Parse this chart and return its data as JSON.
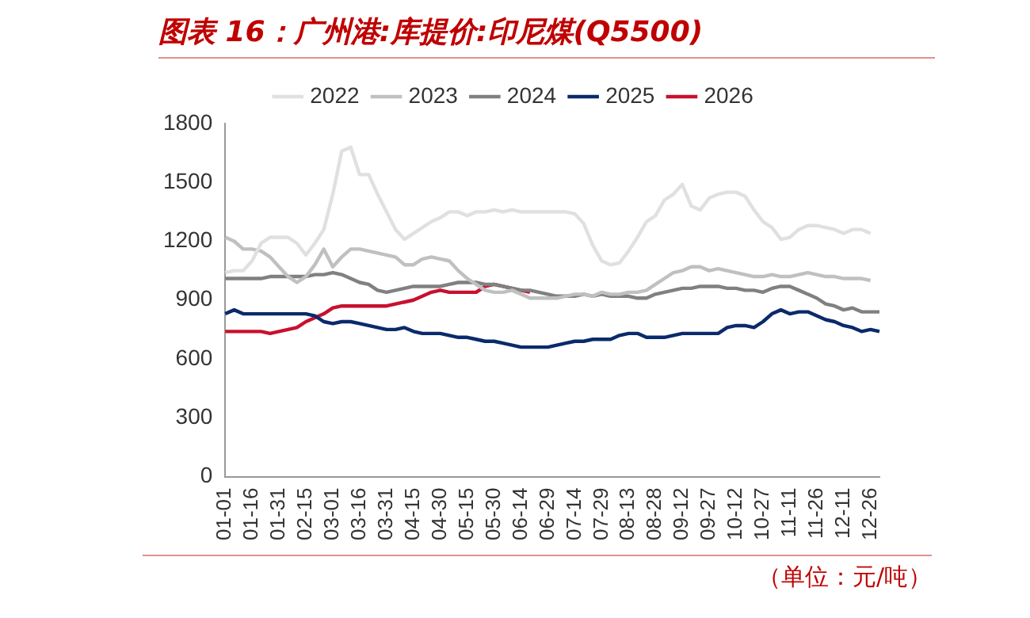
{
  "chart_data": {
    "type": "line",
    "title": "图表 16：广州港:库提价:印尼煤(Q5500)",
    "categories": [
      "01-01",
      null,
      null,
      "01-16",
      null,
      null,
      "01-31",
      null,
      null,
      "02-15",
      null,
      null,
      "03-01",
      null,
      null,
      "03-16",
      null,
      null,
      "03-31",
      null,
      null,
      "04-15",
      null,
      null,
      "04-30",
      null,
      null,
      "05-15",
      null,
      null,
      "05-30",
      null,
      null,
      "06-14",
      null,
      null,
      "06-29",
      null,
      null,
      "07-14",
      null,
      null,
      "07-29",
      null,
      null,
      "08-13",
      null,
      null,
      "08-28",
      null,
      null,
      "09-12",
      null,
      null,
      "09-27",
      null,
      null,
      "10-12",
      null,
      null,
      "10-27",
      null,
      null,
      "11-11",
      null,
      null,
      "11-26",
      null,
      null,
      "12-11",
      null,
      null,
      "12-26",
      null
    ],
    "series": [
      {
        "name": "2022",
        "color": "#e0e0e0",
        "values": [
          1040,
          1050,
          1050,
          1100,
          1190,
          1220,
          1220,
          1220,
          1190,
          1130,
          1190,
          1260,
          1440,
          1660,
          1680,
          1540,
          1540,
          1440,
          1350,
          1260,
          1210,
          1240,
          1270,
          1300,
          1320,
          1350,
          1350,
          1330,
          1350,
          1350,
          1360,
          1350,
          1360,
          1350,
          1350,
          1350,
          1350,
          1350,
          1350,
          1340,
          1290,
          1180,
          1100,
          1080,
          1090,
          1150,
          1220,
          1300,
          1330,
          1410,
          1440,
          1490,
          1380,
          1360,
          1420,
          1440,
          1450,
          1450,
          1430,
          1360,
          1300,
          1270,
          1210,
          1220,
          1260,
          1280,
          1280,
          1270,
          1260,
          1240,
          1260,
          1260,
          1240,
          null
        ]
      },
      {
        "name": "2023",
        "color": "#c0c0c0",
        "values": [
          1220,
          1200,
          1160,
          1160,
          1150,
          1120,
          1070,
          1020,
          990,
          1020,
          1080,
          1160,
          1070,
          1120,
          1160,
          1160,
          1150,
          1140,
          1130,
          1120,
          1080,
          1080,
          1110,
          1120,
          1110,
          1100,
          1050,
          1010,
          980,
          950,
          940,
          940,
          950,
          930,
          910,
          910,
          910,
          910,
          920,
          930,
          930,
          920,
          940,
          930,
          930,
          940,
          940,
          950,
          980,
          1010,
          1040,
          1050,
          1070,
          1070,
          1050,
          1060,
          1050,
          1040,
          1030,
          1020,
          1020,
          1030,
          1020,
          1020,
          1030,
          1040,
          1030,
          1020,
          1020,
          1010,
          1010,
          1010,
          1000,
          null
        ]
      },
      {
        "name": "2024",
        "color": "#808080",
        "values": [
          1010,
          1010,
          1010,
          1010,
          1010,
          1020,
          1020,
          1020,
          1020,
          1020,
          1030,
          1030,
          1040,
          1030,
          1010,
          990,
          980,
          950,
          940,
          950,
          960,
          970,
          970,
          970,
          970,
          980,
          990,
          990,
          990,
          980,
          980,
          970,
          960,
          950,
          950,
          940,
          930,
          920,
          920,
          920,
          930,
          920,
          930,
          920,
          920,
          920,
          910,
          910,
          930,
          940,
          950,
          960,
          960,
          970,
          970,
          970,
          960,
          960,
          950,
          950,
          940,
          960,
          970,
          970,
          950,
          930,
          910,
          880,
          870,
          850,
          860,
          840,
          840,
          840
        ]
      },
      {
        "name": "2025",
        "color": "#0a2a6b",
        "values": [
          830,
          850,
          830,
          830,
          830,
          830,
          830,
          830,
          830,
          830,
          820,
          790,
          780,
          790,
          790,
          780,
          770,
          760,
          750,
          750,
          760,
          740,
          730,
          730,
          730,
          720,
          710,
          710,
          700,
          690,
          690,
          680,
          670,
          660,
          660,
          660,
          660,
          670,
          680,
          690,
          690,
          700,
          700,
          700,
          720,
          730,
          730,
          710,
          710,
          710,
          720,
          730,
          730,
          730,
          730,
          730,
          760,
          770,
          770,
          760,
          790,
          830,
          850,
          830,
          840,
          840,
          820,
          800,
          790,
          770,
          760,
          740,
          750,
          740
        ]
      },
      {
        "name": "2026",
        "color": "#c8102e",
        "values": [
          740,
          740,
          740,
          740,
          740,
          730,
          740,
          750,
          760,
          790,
          810,
          830,
          860,
          870,
          870,
          870,
          870,
          870,
          870,
          880,
          890,
          900,
          920,
          940,
          950,
          940,
          940,
          940,
          940,
          970,
          980,
          970,
          960,
          950,
          940,
          null,
          null,
          null,
          null,
          null,
          null,
          null,
          null,
          null,
          null,
          null,
          null,
          null,
          null,
          null,
          null,
          null,
          null,
          null,
          null,
          null,
          null,
          null,
          null,
          null,
          null,
          null,
          null,
          null,
          null,
          null,
          null,
          null,
          null,
          null,
          null,
          null,
          null,
          null
        ]
      }
    ],
    "ylim": [
      0,
      1800
    ],
    "yticks": [
      0,
      300,
      600,
      900,
      1200,
      1500,
      1800
    ],
    "grid": false,
    "legend": "top",
    "marker": "none",
    "line_style": "solid",
    "annotations": [
      "（单位：元/吨）"
    ]
  }
}
